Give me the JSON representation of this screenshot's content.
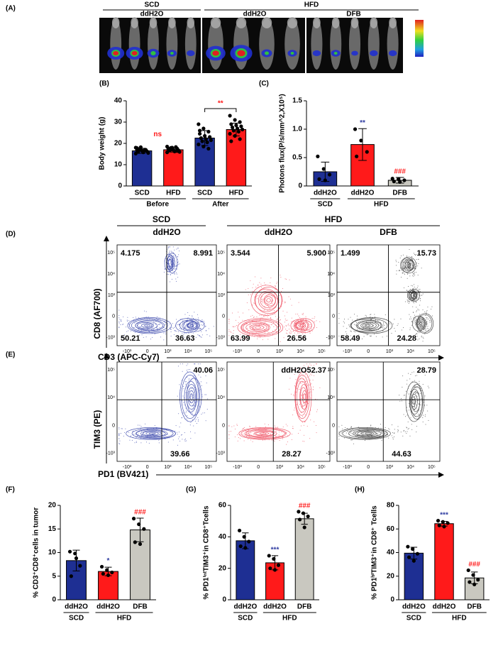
{
  "panel_a": {
    "label": "(A)",
    "groups": [
      {
        "label": "SCD",
        "subgroups": [
          "ddH2O"
        ]
      },
      {
        "label": "HFD",
        "subgroups": [
          "ddH2O",
          "DFB"
        ]
      }
    ]
  },
  "chart_data": [
    {
      "type": "bar",
      "label": "(B)",
      "ylabel": "Body weight (g)",
      "ylim": [
        0,
        40
      ],
      "yticks": [
        0,
        10,
        20,
        30,
        40
      ],
      "groups": [
        {
          "label": "Before",
          "categories": [
            "SCD",
            "HFD"
          ]
        },
        {
          "label": "After",
          "categories": [
            "SCD",
            "HFD"
          ]
        }
      ],
      "values": [
        16.5,
        17,
        22.5,
        26.5
      ],
      "errors": [
        1.2,
        1.1,
        3.5,
        3
      ],
      "colors": [
        "#1e2f93",
        "#ff1a1a",
        "#1e2f93",
        "#ff1a1a"
      ],
      "points": [
        [
          18,
          17.5,
          17,
          16.8,
          16.5,
          16.3,
          16,
          15.8,
          15.5,
          17.2,
          16.9,
          15.2,
          18.2,
          16.6,
          17.8
        ],
        [
          18.5,
          18,
          17.6,
          17.3,
          17,
          16.8,
          16.6,
          16.2,
          16,
          17.9,
          18.3,
          15.8,
          17.1,
          16.4,
          17.5
        ],
        [
          29,
          27,
          25.5,
          24.5,
          23.5,
          23,
          22.5,
          22,
          21.5,
          21,
          20.5,
          19.5,
          18.5,
          17.5,
          26
        ],
        [
          33,
          31,
          30,
          29,
          28.5,
          28,
          27.5,
          27,
          26.5,
          26,
          25.5,
          24.5,
          23.5,
          22,
          21
        ]
      ],
      "group_annotations": [
        {
          "text": "ns",
          "color": "#ff1a1a",
          "bracket": false
        },
        {
          "text": "**",
          "color": "#ff1a1a",
          "bracket": true
        }
      ]
    },
    {
      "type": "bar",
      "label": "(C)",
      "ylabel": "Photons flux(P/s/mm^2,X10⁵)",
      "ylim": [
        0,
        1.5
      ],
      "yticks": [
        0,
        0.5,
        {
          "value": 1,
          "label": "1.0"
        },
        1.5
      ],
      "groups": [
        {
          "label": "SCD",
          "categories": [
            "ddH2O"
          ]
        },
        {
          "label": "HFD",
          "categories": [
            "ddH2O",
            "DFB"
          ]
        }
      ],
      "values": [
        0.25,
        0.73,
        0.1
      ],
      "errors": [
        0.17,
        0.28,
        0.05
      ],
      "colors": [
        "#1e2f93",
        "#ff1a1a",
        "#c9c8c0"
      ],
      "points": [
        [
          0.52,
          0.3,
          0.2,
          0.12,
          0.1
        ],
        [
          1.0,
          0.8,
          0.6,
          0.52
        ],
        [
          0.13,
          0.12,
          0.1,
          0.08,
          0.07
        ]
      ],
      "bar_annotations": [
        null,
        "**",
        "###"
      ],
      "annotation_colors": [
        null,
        "#2d3aa0",
        "#ff1a1a"
      ]
    },
    {
      "type": "bar",
      "label": "(F)",
      "ylabel": "% CD3⁺CD8⁺cells in tumor",
      "ylim": [
        0,
        20
      ],
      "yticks": [
        0,
        5,
        10,
        15,
        20
      ],
      "groups": [
        {
          "label": "SCD",
          "categories": [
            "ddH2O"
          ]
        },
        {
          "label": "HFD",
          "categories": [
            "ddH2O",
            "DFB"
          ]
        }
      ],
      "values": [
        8.3,
        6.0,
        14.8
      ],
      "errors": [
        2.2,
        0.9,
        2.5
      ],
      "colors": [
        "#1e2f93",
        "#ff1a1a",
        "#c9c8c0"
      ],
      "points": [
        [
          10.2,
          9.8,
          7.2,
          5.0,
          8.8
        ],
        [
          7.0,
          6.3,
          5.8,
          5.5,
          5.2
        ],
        [
          17.2,
          16.0,
          15.0,
          12.2,
          11.8
        ]
      ],
      "bar_annotations": [
        null,
        "*",
        "###"
      ],
      "annotation_colors": [
        null,
        "#2d3aa0",
        "#ff1a1a"
      ]
    },
    {
      "type": "bar",
      "label": "(G)",
      "ylabel": "% PD1ⁱⁿᵗTIM3⁺in CD8⁺Tcells",
      "ylim": [
        0,
        60
      ],
      "yticks": [
        0,
        20,
        40,
        60
      ],
      "groups": [
        {
          "label": "SCD",
          "categories": [
            "ddH2O"
          ]
        },
        {
          "label": "HFD",
          "categories": [
            "ddH2O",
            "DFB"
          ]
        }
      ],
      "values": [
        37.5,
        23.5,
        51.5
      ],
      "errors": [
        5,
        4.5,
        3.5
      ],
      "colors": [
        "#1e2f93",
        "#ff1a1a",
        "#c9c8c0"
      ],
      "points": [
        [
          44,
          40,
          37,
          34,
          33
        ],
        [
          28,
          26,
          22,
          20,
          19
        ],
        [
          56,
          55,
          53,
          51,
          46
        ]
      ],
      "bar_annotations": [
        null,
        "***",
        "###"
      ],
      "annotation_colors": [
        null,
        "#2d3aa0",
        "#ff1a1a"
      ]
    },
    {
      "type": "bar",
      "label": "(H)",
      "ylabel": "% PD1ʰⁱTIM3⁺in CD8⁺ Tcells",
      "ylim": [
        0,
        80
      ],
      "yticks": [
        0,
        20,
        40,
        60,
        80
      ],
      "groups": [
        {
          "label": "SCD",
          "categories": [
            "ddH2O"
          ]
        },
        {
          "label": "HFD",
          "categories": [
            "ddH2O",
            "DFB"
          ]
        }
      ],
      "values": [
        39.5,
        64.5,
        18.5
      ],
      "errors": [
        5,
        2,
        5
      ],
      "colors": [
        "#1e2f93",
        "#ff1a1a",
        "#c9c8c0"
      ],
      "points": [
        [
          45,
          43,
          39,
          36,
          33
        ],
        [
          67,
          66,
          65,
          63,
          62
        ],
        [
          25,
          21,
          17,
          15,
          13
        ]
      ],
      "bar_annotations": [
        null,
        "***",
        "###"
      ],
      "annotation_colors": [
        null,
        "#2d3aa0",
        "#ff1a1a"
      ]
    }
  ],
  "flow_panels": [
    {
      "label": "(D)",
      "groups": [
        {
          "label": "SCD",
          "subgroups": [
            "ddH2O"
          ]
        },
        {
          "label": "HFD",
          "subgroups": [
            "ddH2O",
            "DFB"
          ]
        }
      ],
      "ylabel": "CD8 (AF700)",
      "xlabel": "CD3 (APC-Cy7)",
      "yticks": [
        "10⁵",
        "10⁴",
        "10³",
        "0",
        "-10³"
      ],
      "xticks": [
        "-10³",
        "0",
        "10³",
        "10⁴",
        "10⁵"
      ],
      "plots": [
        {
          "color": "#4f5bb5",
          "quadrants": {
            "ul": "4.175",
            "ur": "8.991",
            "ll": "50.21",
            "lr": "36.63"
          }
        },
        {
          "color": "#f06070",
          "quadrants": {
            "ul": "3.544",
            "ur": "5.900",
            "ll": "63.99",
            "lr": "26.56"
          }
        },
        {
          "color": "#555555",
          "quadrants": {
            "ul": "1.499",
            "ur": "15.73",
            "ll": "58.49",
            "lr": "24.28"
          }
        }
      ]
    },
    {
      "label": "(E)",
      "ylabel": "TIM3 (PE)",
      "xlabel": "PD1 (BV421)",
      "yticks": [
        "10⁵",
        "10⁴",
        "0",
        "-10³"
      ],
      "xticks": [
        "-10³",
        "0",
        "10³",
        "10⁴",
        "10⁵"
      ],
      "plots": [
        {
          "color": "#4f5bb5",
          "quadrants": {
            "ur": "40.06",
            "lr": "39.66"
          }
        },
        {
          "color": "#f06070",
          "quadrants": {
            "ur": "ddH2O52.37",
            "lr": "28.27"
          }
        },
        {
          "color": "#555555",
          "quadrants": {
            "ur": "28.79",
            "lr": "44.63"
          }
        }
      ]
    }
  ]
}
